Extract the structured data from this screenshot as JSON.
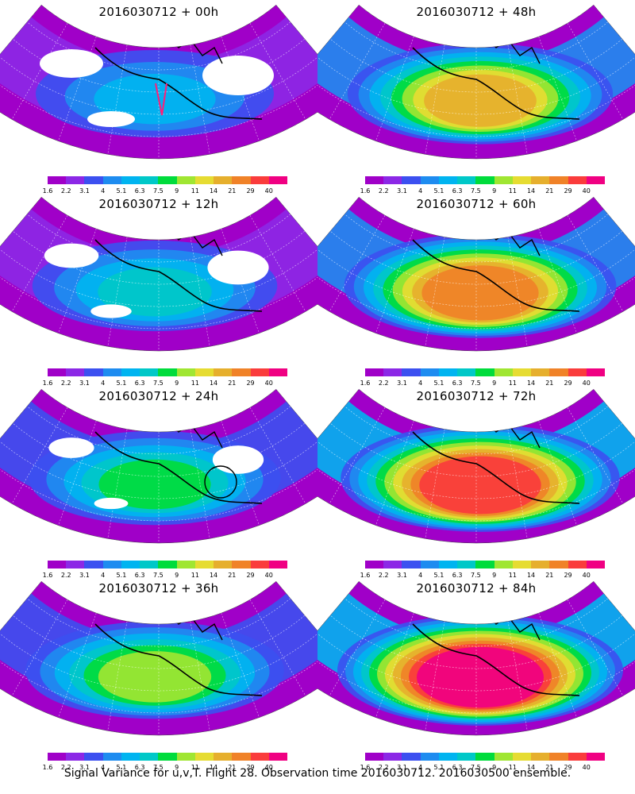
{
  "footer": "Signal Variance for u,v,T. Flight 28. Observation time 2016030712. 2016030500 ensemble.",
  "colorbar": {
    "labels": [
      "1.6",
      "2.2",
      "3.1",
      "4",
      "5.1",
      "6.3",
      "7.5",
      "9",
      "11",
      "14",
      "21",
      "29",
      "40"
    ],
    "colors": [
      "#a000c8",
      "#8c28e6",
      "#3c50f0",
      "#1e8cf0",
      "#00b4f0",
      "#00c8c8",
      "#00dc3c",
      "#a0e632",
      "#e6dc32",
      "#e6af2d",
      "#f08228",
      "#fa3c3c",
      "#f00082"
    ]
  },
  "panels": [
    {
      "title": "2016030712 + 00h",
      "lead_hours": 0,
      "highlight": "flight-track"
    },
    {
      "title": "2016030712 + 48h",
      "lead_hours": 48
    },
    {
      "title": "2016030712 + 12h",
      "lead_hours": 12
    },
    {
      "title": "2016030712 + 60h",
      "lead_hours": 60
    },
    {
      "title": "2016030712 + 24h",
      "lead_hours": 24,
      "highlight": "circle"
    },
    {
      "title": "2016030712 + 72h",
      "lead_hours": 72
    },
    {
      "title": "2016030712 + 36h",
      "lead_hours": 36
    },
    {
      "title": "2016030712 + 84h",
      "lead_hours": 84
    }
  ]
}
